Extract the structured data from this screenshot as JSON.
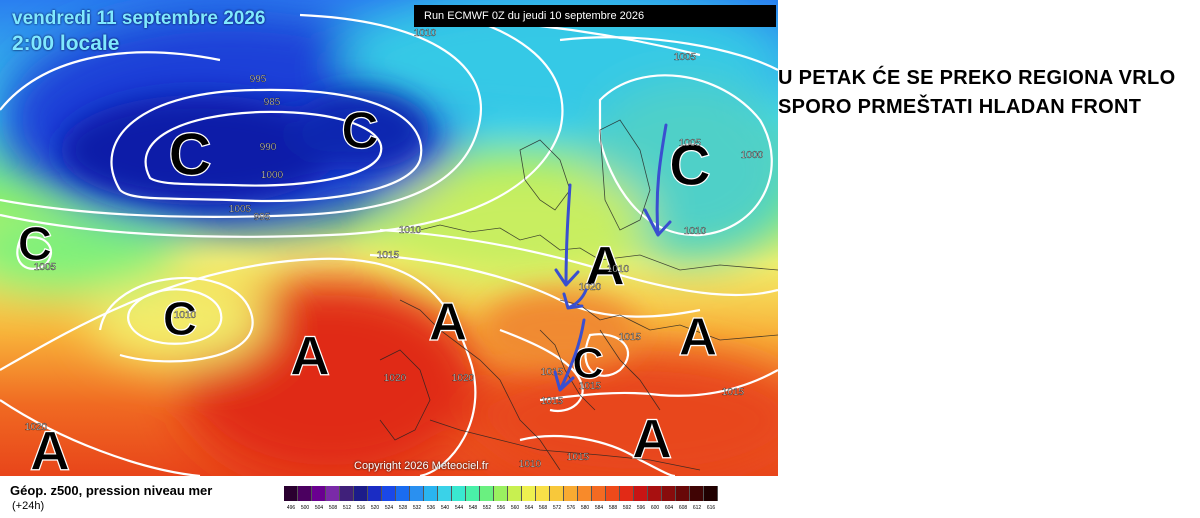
{
  "header": {
    "date": "vendredi 11 septembre 2026",
    "time": "2:00 locale",
    "run": "Run ECMWF 0Z du jeudi 10 septembre 2026"
  },
  "copyright": "Copyright 2026 Meteociel.fr",
  "footer": {
    "title": "Géop. z500, pression niveau mer",
    "subtitle": "(+24h)",
    "scale_labels": [
      "496",
      "500",
      "504",
      "508",
      "512",
      "516",
      "520",
      "524",
      "528",
      "532",
      "536",
      "540",
      "544",
      "548",
      "552",
      "556",
      "560",
      "564",
      "568",
      "572",
      "576",
      "580",
      "584",
      "588",
      "592",
      "596",
      "600",
      "604",
      "608",
      "612",
      "616"
    ]
  },
  "caption": "U PETAK ĆE SE PREKO REGIONA VRLO SPORO PRMEŠTATI HLADAN FRONT",
  "pressure_centers": [
    {
      "label": "C",
      "kind": "low"
    },
    {
      "label": "C",
      "kind": "low"
    },
    {
      "label": "C",
      "kind": "low"
    },
    {
      "label": "C",
      "kind": "low"
    },
    {
      "label": "C",
      "kind": "low"
    },
    {
      "label": "C",
      "kind": "low"
    },
    {
      "label": "A",
      "kind": "high"
    },
    {
      "label": "A",
      "kind": "high"
    },
    {
      "label": "A",
      "kind": "high"
    },
    {
      "label": "A",
      "kind": "high"
    },
    {
      "label": "A",
      "kind": "high"
    },
    {
      "label": "A",
      "kind": "high"
    }
  ],
  "isobar_labels": [
    "1010",
    "1005",
    "995",
    "985",
    "990",
    "1000",
    "1005",
    "995",
    "1005",
    "1010",
    "1005",
    "1000",
    "1010",
    "1010",
    "1010",
    "1015",
    "1020",
    "1015",
    "1015",
    "1015",
    "1020",
    "1020",
    "1015",
    "1015",
    "1010",
    "1015",
    "1020"
  ],
  "colors": {
    "annotation_arrow": "#3a4fd0",
    "isobar": "#ffffff"
  }
}
